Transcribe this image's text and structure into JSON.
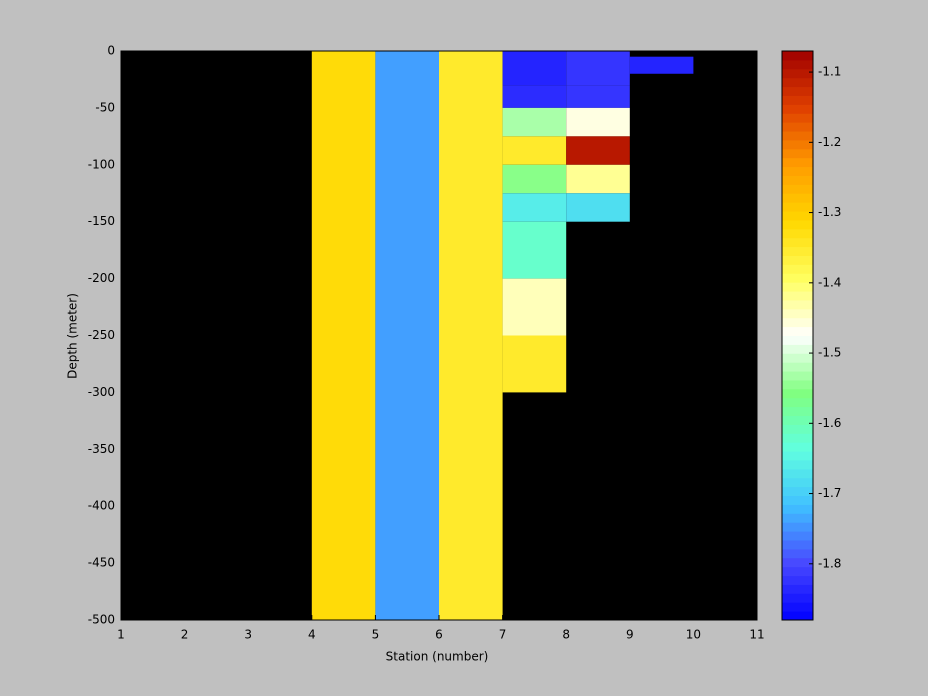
{
  "chart_data": {
    "type": "heatmap",
    "xlabel": "Station (number)",
    "ylabel": "Depth (meter)",
    "xlim": [
      1,
      11
    ],
    "xticks": [
      1,
      2,
      3,
      4,
      5,
      6,
      7,
      8,
      9,
      10,
      11
    ],
    "ylim": [
      -500,
      0
    ],
    "yticks": [
      0,
      -50,
      -100,
      -150,
      -200,
      -250,
      -300,
      -350,
      -400,
      -450,
      -500
    ],
    "background": "#000000",
    "clim": [
      -1.88,
      -1.07
    ],
    "cticks": [
      -1.1,
      -1.2,
      -1.3,
      -1.4,
      -1.5,
      -1.6,
      -1.7,
      -1.8
    ],
    "colormap": [
      "#0000ff",
      "#4848ff",
      "#40c0ff",
      "#60ffe0",
      "#80ff80",
      "#ffffff",
      "#ffff60",
      "#ffd800",
      "#ff9c00",
      "#e04000",
      "#a00000"
    ],
    "cells": [
      {
        "x": [
          4,
          5
        ],
        "y": [
          0,
          -500
        ],
        "value": -1.32
      },
      {
        "x": [
          5,
          6
        ],
        "y": [
          0,
          -500
        ],
        "value": -1.74
      },
      {
        "x": [
          6,
          7
        ],
        "y": [
          0,
          -500
        ],
        "value": -1.35
      },
      {
        "x": [
          7,
          8
        ],
        "y": [
          0,
          -30
        ],
        "value": -1.84
      },
      {
        "x": [
          7,
          8
        ],
        "y": [
          -30,
          -50
        ],
        "value": -1.83
      },
      {
        "x": [
          7,
          8
        ],
        "y": [
          -50,
          -75
        ],
        "value": -1.53
      },
      {
        "x": [
          7,
          8
        ],
        "y": [
          -75,
          -100
        ],
        "value": -1.35
      },
      {
        "x": [
          7,
          8
        ],
        "y": [
          -100,
          -125
        ],
        "value": -1.55
      },
      {
        "x": [
          7,
          8
        ],
        "y": [
          -125,
          -150
        ],
        "value": -1.66
      },
      {
        "x": [
          7,
          8
        ],
        "y": [
          -150,
          -200
        ],
        "value": -1.62
      },
      {
        "x": [
          7,
          8
        ],
        "y": [
          -200,
          -250
        ],
        "value": -1.44
      },
      {
        "x": [
          7,
          8
        ],
        "y": [
          -250,
          -300
        ],
        "value": -1.35
      },
      {
        "x": [
          8,
          9
        ],
        "y": [
          0,
          -30
        ],
        "value": -1.82
      },
      {
        "x": [
          8,
          9
        ],
        "y": [
          -30,
          -50
        ],
        "value": -1.82
      },
      {
        "x": [
          8,
          9
        ],
        "y": [
          -50,
          -75
        ],
        "value": -1.46
      },
      {
        "x": [
          8,
          9
        ],
        "y": [
          -75,
          -100
        ],
        "value": -1.1
      },
      {
        "x": [
          8,
          9
        ],
        "y": [
          -100,
          -125
        ],
        "value": -1.42
      },
      {
        "x": [
          8,
          9
        ],
        "y": [
          -125,
          -150
        ],
        "value": -1.68
      },
      {
        "x": [
          9,
          10
        ],
        "y": [
          -5,
          -20
        ],
        "value": -1.84
      }
    ]
  }
}
